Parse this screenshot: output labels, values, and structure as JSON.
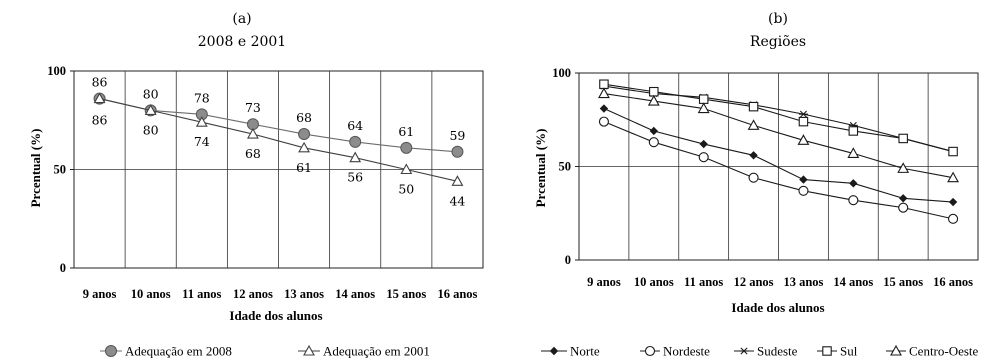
{
  "chart_data": [
    {
      "type": "line",
      "panel_label": "(a)",
      "title": "2008 e 2001",
      "xlabel": "Idade dos alunos",
      "ylabel": "Prcentual (%)",
      "ylim": [
        0,
        100
      ],
      "yticks": [
        "0",
        "50",
        "100"
      ],
      "categories": [
        "9 anos",
        "10 anos",
        "11 anos",
        "12 anos",
        "13 anos",
        "14 anos",
        "15 anos",
        "16 anos"
      ],
      "grid": "vertical and horizontal at 50",
      "legend_position": "bottom",
      "series": [
        {
          "name": "Adequação em 2008",
          "values": [
            86,
            80,
            78,
            73,
            68,
            64,
            61,
            59
          ],
          "labels": [
            "86",
            "80",
            "78",
            "73",
            "68",
            "64",
            "61",
            "59"
          ],
          "marker": "gray-circle",
          "color": "#6d6d6d"
        },
        {
          "name": "Adequação em 2001",
          "values": [
            86,
            80,
            74,
            68,
            61,
            56,
            50,
            44
          ],
          "labels": [
            "86",
            "80",
            "74",
            "68",
            "61",
            "56",
            "50",
            "44"
          ],
          "marker": "open-triangle",
          "color": "#404040"
        }
      ]
    },
    {
      "type": "line",
      "panel_label": "(b)",
      "title": "Regiões",
      "xlabel": "Idade dos alunos",
      "ylabel": "Prcentual (%)",
      "ylim": [
        0,
        100
      ],
      "yticks": [
        "0",
        "50",
        "100"
      ],
      "categories": [
        "9 anos",
        "10 anos",
        "11 anos",
        "12 anos",
        "13 anos",
        "14 anos",
        "15 anos",
        "16 anos"
      ],
      "grid": "vertical and horizontal at 50",
      "legend_position": "bottom",
      "series": [
        {
          "name": "Norte",
          "values": [
            81,
            69,
            62,
            56,
            43,
            41,
            33,
            31
          ],
          "marker": "filled-diamond",
          "color": "#1a1a1a"
        },
        {
          "name": "Nordeste",
          "values": [
            74,
            63,
            55,
            44,
            37,
            32,
            28,
            22
          ],
          "marker": "open-circle",
          "color": "#1a1a1a"
        },
        {
          "name": "Sudeste",
          "values": [
            93,
            89,
            87,
            83,
            78,
            72,
            65,
            58
          ],
          "marker": "star",
          "color": "#1a1a1a"
        },
        {
          "name": "Sul",
          "values": [
            94,
            90,
            86,
            82,
            74,
            69,
            65,
            58
          ],
          "marker": "open-square",
          "color": "#1a1a1a"
        },
        {
          "name": "Centro-Oeste",
          "values": [
            89,
            85,
            81,
            72,
            64,
            57,
            49,
            44
          ],
          "marker": "open-triangle",
          "color": "#1a1a1a"
        }
      ]
    }
  ]
}
